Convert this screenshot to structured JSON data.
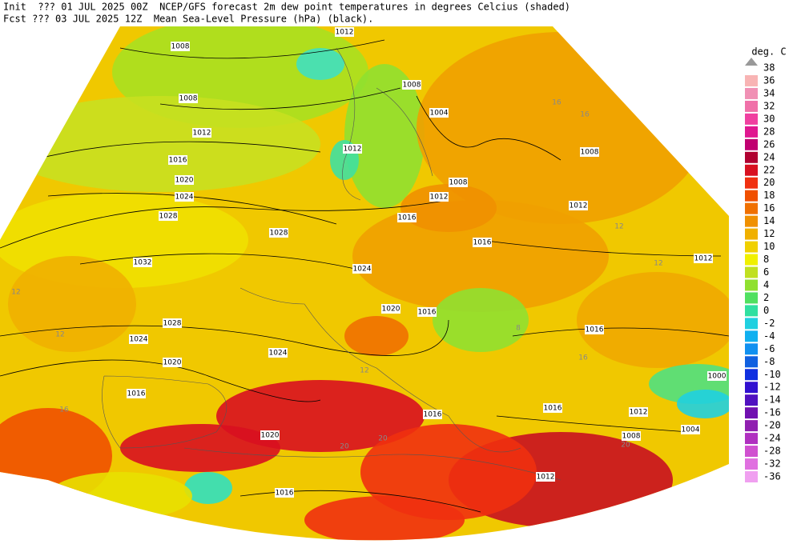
{
  "header": {
    "line1": "Init  ??? 01 JUL 2025 00Z  NCEP/GFS forecast 2m dew point temperatures in degrees Celcius (shaded)",
    "line2": "Fcst ??? 03 JUL 2025 12Z  Mean Sea-Level Pressure (hPa) (black)."
  },
  "legend": {
    "title": "deg. C",
    "top": 38,
    "levels": [
      36,
      34,
      32,
      30,
      28,
      26,
      24,
      22,
      20,
      18,
      16,
      14,
      12,
      10,
      8,
      6,
      4,
      2,
      0,
      -2,
      -4,
      -6,
      -8,
      -10,
      -12,
      -14,
      -16,
      -20,
      -24,
      -28,
      -32,
      -36
    ],
    "colors": [
      "#f8b4b4",
      "#f090b4",
      "#f070a8",
      "#f040a0",
      "#e01890",
      "#c00070",
      "#b00030",
      "#d81020",
      "#f03010",
      "#f05000",
      "#f07000",
      "#f09000",
      "#f0b000",
      "#f0d000",
      "#f0f000",
      "#c0e020",
      "#90e030",
      "#50e060",
      "#30e0a0",
      "#20d0e0",
      "#10b0f0",
      "#1090f0",
      "#1060e0",
      "#1030e0",
      "#3010d0",
      "#5010c0",
      "#7010b0",
      "#9020b0",
      "#b030c0",
      "#d050d0",
      "#e070e0",
      "#f0a0f0"
    ]
  },
  "map": {
    "pressure_labels": [
      1012,
      1008,
      1008,
      1012,
      1016,
      1020,
      1024,
      1028,
      1028,
      1032,
      1028,
      1024,
      1020,
      1016,
      1024,
      1024,
      1020,
      1016,
      1016,
      1016,
      1012,
      1008,
      1012,
      1008,
      1004,
      1008,
      1012,
      1012,
      1016,
      1016,
      1012,
      1008,
      1004,
      1000,
      1012,
      1016,
      1020,
      1016
    ],
    "dewpoint_labels": [
      12,
      12,
      16,
      20,
      20,
      16,
      16,
      12,
      12,
      16,
      20,
      12,
      8
    ]
  }
}
